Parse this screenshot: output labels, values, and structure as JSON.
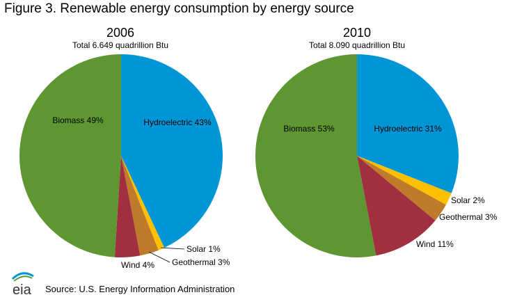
{
  "figure_title": "Figure 3. Renewable energy consumption by energy source",
  "source": "Source: U.S. Energy Information Administration",
  "logo_text": "eia",
  "colors": {
    "Hydroelectric": "#0096d6",
    "Solar": "#ffc000",
    "Geothermal": "#c07a2c",
    "Wind": "#a0303f",
    "Biomass": "#5e9732"
  },
  "chart_data": [
    {
      "type": "pie",
      "title": "2006",
      "subtitle": "Total 6.649 quadrillion Btu",
      "slices": [
        {
          "name": "Hydroelectric",
          "value": 43,
          "label": "Hydroelectric 43%"
        },
        {
          "name": "Solar",
          "value": 1,
          "label": "Solar 1%"
        },
        {
          "name": "Geothermal",
          "value": 3,
          "label": "Geothermal 3%"
        },
        {
          "name": "Wind",
          "value": 4,
          "label": "Wind 4%"
        },
        {
          "name": "Biomass",
          "value": 49,
          "label": "Biomass 49%"
        }
      ]
    },
    {
      "type": "pie",
      "title": "2010",
      "subtitle": "Total 8.090 quadrillion Btu",
      "slices": [
        {
          "name": "Hydroelectric",
          "value": 31,
          "label": "Hydroelectric 31%"
        },
        {
          "name": "Solar",
          "value": 2,
          "label": "Solar 2%"
        },
        {
          "name": "Geothermal",
          "value": 3,
          "label": "Geothermal 3%"
        },
        {
          "name": "Wind",
          "value": 11,
          "label": "Wind 11%"
        },
        {
          "name": "Biomass",
          "value": 53,
          "label": "Biomass 53%"
        }
      ]
    }
  ]
}
